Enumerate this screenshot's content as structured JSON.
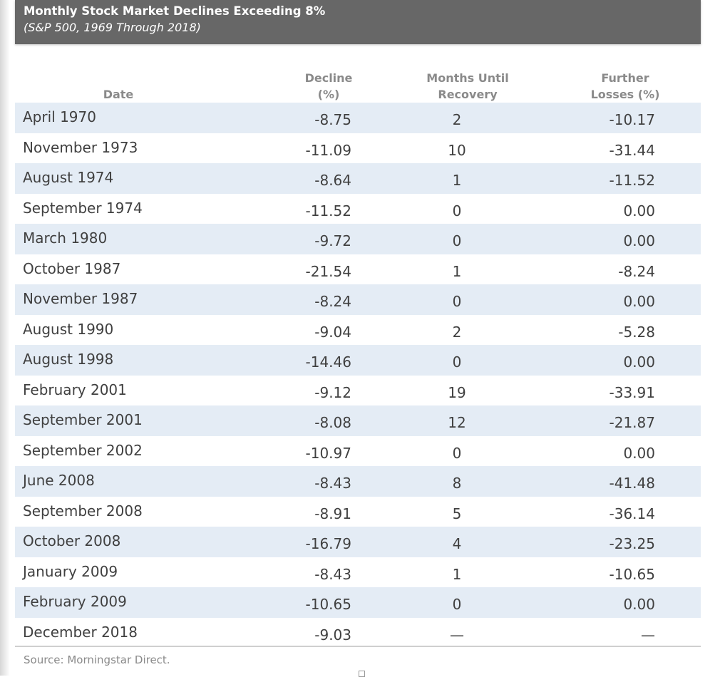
{
  "chart_data": {
    "type": "table",
    "title": "Monthly Stock Market Declines Exceeding 8%",
    "subtitle": "(S&P 500, 1969 Through 2018)",
    "columns": [
      "Date",
      "Decline\n(%)",
      "Months Until\nRecovery",
      "Further\nLosses (%)"
    ],
    "rows": [
      {
        "date": "April 1970",
        "decline": "-8.75",
        "months": "2",
        "further": "-10.17"
      },
      {
        "date": "November 1973",
        "decline": "-11.09",
        "months": "10",
        "further": "-31.44"
      },
      {
        "date": "August 1974",
        "decline": "-8.64",
        "months": "1",
        "further": "-11.52"
      },
      {
        "date": "September 1974",
        "decline": "-11.52",
        "months": "0",
        "further": "0.00"
      },
      {
        "date": "March 1980",
        "decline": "-9.72",
        "months": "0",
        "further": "0.00"
      },
      {
        "date": "October 1987",
        "decline": "-21.54",
        "months": "1",
        "further": "-8.24"
      },
      {
        "date": "November 1987",
        "decline": "-8.24",
        "months": "0",
        "further": "0.00"
      },
      {
        "date": "August 1990",
        "decline": "-9.04",
        "months": "2",
        "further": "-5.28"
      },
      {
        "date": "August 1998",
        "decline": "-14.46",
        "months": "0",
        "further": "0.00"
      },
      {
        "date": "February 2001",
        "decline": "-9.12",
        "months": "19",
        "further": "-33.91"
      },
      {
        "date": "September 2001",
        "decline": "-8.08",
        "months": "12",
        "further": "-21.87"
      },
      {
        "date": "September 2002",
        "decline": "-10.97",
        "months": "0",
        "further": "0.00"
      },
      {
        "date": "June 2008",
        "decline": "-8.43",
        "months": "8",
        "further": "-41.48"
      },
      {
        "date": "September 2008",
        "decline": "-8.91",
        "months": "5",
        "further": "-36.14"
      },
      {
        "date": "October 2008",
        "decline": "-16.79",
        "months": "4",
        "further": "-23.25"
      },
      {
        "date": "January 2009",
        "decline": "-8.43",
        "months": "1",
        "further": "-10.65"
      },
      {
        "date": "February 2009",
        "decline": "-10.65",
        "months": "0",
        "further": "0.00"
      },
      {
        "date": "December 2018",
        "decline": "-9.03",
        "months": "—",
        "further": "—"
      }
    ],
    "source": "Source: Morningstar Direct."
  },
  "colors": {
    "title_bar": "#676767",
    "row_shading": "#e4ecf5",
    "header_text": "#8a8a8a",
    "cell_text": "#404040"
  }
}
